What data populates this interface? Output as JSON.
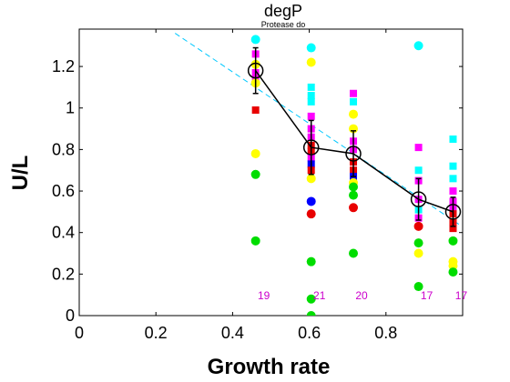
{
  "chart_data": {
    "type": "scatter",
    "title": "degP",
    "subtitle": "Protease do",
    "xlabel": "Growth rate",
    "ylabel": "U/L",
    "xlim": [
      0,
      1.0
    ],
    "ylim": [
      0,
      1.38
    ],
    "x_ticks": [
      "0",
      "0.2",
      "0.4",
      "0.6",
      "0.8"
    ],
    "y_ticks": [
      "0",
      "0.2",
      "0.4",
      "0.6",
      "0.8",
      "1",
      "1.2"
    ],
    "grid": false,
    "colors": {
      "magenta": "#ff00ff",
      "cyan": "#00ffff",
      "red": "#e80000",
      "yellow": "#ffff00",
      "green": "#00dd00",
      "blue": "#0000ff",
      "mean_line": "#000000",
      "fit_line": "#00c8ff",
      "count_text": "#cc00cc"
    },
    "points": [
      {
        "x": 0.46,
        "y": 1.33,
        "shape": "circle",
        "color": "cyan"
      },
      {
        "x": 0.46,
        "y": 1.26,
        "shape": "square",
        "color": "magenta"
      },
      {
        "x": 0.46,
        "y": 1.21,
        "shape": "circle",
        "color": "yellow"
      },
      {
        "x": 0.46,
        "y": 1.17,
        "shape": "square",
        "color": "magenta"
      },
      {
        "x": 0.46,
        "y": 1.14,
        "shape": "square",
        "color": "magenta"
      },
      {
        "x": 0.46,
        "y": 1.12,
        "shape": "circle",
        "color": "yellow"
      },
      {
        "x": 0.46,
        "y": 0.99,
        "shape": "square",
        "color": "red"
      },
      {
        "x": 0.46,
        "y": 0.78,
        "shape": "circle",
        "color": "yellow"
      },
      {
        "x": 0.46,
        "y": 0.68,
        "shape": "circle",
        "color": "green"
      },
      {
        "x": 0.46,
        "y": 0.36,
        "shape": "circle",
        "color": "green"
      },
      {
        "x": 0.605,
        "y": 1.29,
        "shape": "circle",
        "color": "cyan"
      },
      {
        "x": 0.605,
        "y": 1.22,
        "shape": "circle",
        "color": "yellow"
      },
      {
        "x": 0.605,
        "y": 1.1,
        "shape": "square",
        "color": "cyan"
      },
      {
        "x": 0.605,
        "y": 1.06,
        "shape": "square",
        "color": "cyan"
      },
      {
        "x": 0.605,
        "y": 1.03,
        "shape": "square",
        "color": "cyan"
      },
      {
        "x": 0.605,
        "y": 0.96,
        "shape": "square",
        "color": "magenta"
      },
      {
        "x": 0.605,
        "y": 0.9,
        "shape": "square",
        "color": "magenta"
      },
      {
        "x": 0.605,
        "y": 0.86,
        "shape": "square",
        "color": "magenta"
      },
      {
        "x": 0.605,
        "y": 0.82,
        "shape": "square",
        "color": "red"
      },
      {
        "x": 0.605,
        "y": 0.79,
        "shape": "square",
        "color": "red"
      },
      {
        "x": 0.605,
        "y": 0.76,
        "shape": "square",
        "color": "magenta"
      },
      {
        "x": 0.605,
        "y": 0.73,
        "shape": "square",
        "color": "blue"
      },
      {
        "x": 0.605,
        "y": 0.7,
        "shape": "square",
        "color": "red"
      },
      {
        "x": 0.605,
        "y": 0.66,
        "shape": "circle",
        "color": "yellow"
      },
      {
        "x": 0.605,
        "y": 0.55,
        "shape": "circle",
        "color": "blue"
      },
      {
        "x": 0.605,
        "y": 0.49,
        "shape": "circle",
        "color": "red"
      },
      {
        "x": 0.605,
        "y": 0.26,
        "shape": "circle",
        "color": "green"
      },
      {
        "x": 0.605,
        "y": 0.08,
        "shape": "circle",
        "color": "green"
      },
      {
        "x": 0.605,
        "y": 0.0,
        "shape": "circle",
        "color": "green"
      },
      {
        "x": 0.715,
        "y": 1.07,
        "shape": "square",
        "color": "magenta"
      },
      {
        "x": 0.715,
        "y": 1.03,
        "shape": "square",
        "color": "cyan"
      },
      {
        "x": 0.715,
        "y": 0.97,
        "shape": "circle",
        "color": "yellow"
      },
      {
        "x": 0.715,
        "y": 0.9,
        "shape": "circle",
        "color": "yellow"
      },
      {
        "x": 0.715,
        "y": 0.84,
        "shape": "square",
        "color": "magenta"
      },
      {
        "x": 0.715,
        "y": 0.8,
        "shape": "square",
        "color": "magenta"
      },
      {
        "x": 0.715,
        "y": 0.74,
        "shape": "square",
        "color": "red"
      },
      {
        "x": 0.715,
        "y": 0.7,
        "shape": "square",
        "color": "red"
      },
      {
        "x": 0.715,
        "y": 0.67,
        "shape": "square",
        "color": "blue"
      },
      {
        "x": 0.715,
        "y": 0.64,
        "shape": "circle",
        "color": "yellow"
      },
      {
        "x": 0.715,
        "y": 0.62,
        "shape": "circle",
        "color": "green"
      },
      {
        "x": 0.715,
        "y": 0.58,
        "shape": "circle",
        "color": "green"
      },
      {
        "x": 0.715,
        "y": 0.52,
        "shape": "circle",
        "color": "red"
      },
      {
        "x": 0.715,
        "y": 0.3,
        "shape": "circle",
        "color": "green"
      },
      {
        "x": 0.885,
        "y": 1.3,
        "shape": "circle",
        "color": "cyan"
      },
      {
        "x": 0.885,
        "y": 0.81,
        "shape": "square",
        "color": "magenta"
      },
      {
        "x": 0.885,
        "y": 0.7,
        "shape": "square",
        "color": "cyan"
      },
      {
        "x": 0.885,
        "y": 0.65,
        "shape": "square",
        "color": "magenta"
      },
      {
        "x": 0.885,
        "y": 0.56,
        "shape": "square",
        "color": "magenta"
      },
      {
        "x": 0.885,
        "y": 0.51,
        "shape": "square",
        "color": "cyan"
      },
      {
        "x": 0.885,
        "y": 0.47,
        "shape": "square",
        "color": "magenta"
      },
      {
        "x": 0.885,
        "y": 0.43,
        "shape": "circle",
        "color": "red"
      },
      {
        "x": 0.885,
        "y": 0.35,
        "shape": "circle",
        "color": "green"
      },
      {
        "x": 0.885,
        "y": 0.3,
        "shape": "circle",
        "color": "yellow"
      },
      {
        "x": 0.885,
        "y": 0.14,
        "shape": "circle",
        "color": "green"
      },
      {
        "x": 0.975,
        "y": 0.85,
        "shape": "square",
        "color": "cyan"
      },
      {
        "x": 0.975,
        "y": 0.72,
        "shape": "square",
        "color": "cyan"
      },
      {
        "x": 0.975,
        "y": 0.66,
        "shape": "square",
        "color": "cyan"
      },
      {
        "x": 0.975,
        "y": 0.6,
        "shape": "square",
        "color": "magenta"
      },
      {
        "x": 0.975,
        "y": 0.55,
        "shape": "square",
        "color": "magenta"
      },
      {
        "x": 0.975,
        "y": 0.52,
        "shape": "square",
        "color": "magenta"
      },
      {
        "x": 0.975,
        "y": 0.49,
        "shape": "square",
        "color": "red"
      },
      {
        "x": 0.975,
        "y": 0.45,
        "shape": "square",
        "color": "red"
      },
      {
        "x": 0.975,
        "y": 0.42,
        "shape": "square",
        "color": "red"
      },
      {
        "x": 0.975,
        "y": 0.36,
        "shape": "circle",
        "color": "green"
      },
      {
        "x": 0.975,
        "y": 0.26,
        "shape": "circle",
        "color": "yellow"
      },
      {
        "x": 0.975,
        "y": 0.24,
        "shape": "circle",
        "color": "yellow"
      },
      {
        "x": 0.975,
        "y": 0.21,
        "shape": "circle",
        "color": "green"
      }
    ],
    "mean": {
      "x": [
        0.46,
        0.605,
        0.715,
        0.885,
        0.975
      ],
      "y": [
        1.18,
        0.81,
        0.78,
        0.56,
        0.5
      ],
      "err": [
        0.11,
        0.13,
        0.11,
        0.1,
        0.07
      ]
    },
    "fit_line": {
      "x": [
        0.25,
        0.99
      ],
      "y": [
        1.36,
        0.44
      ]
    },
    "counts": [
      {
        "x": 0.46,
        "label": "19"
      },
      {
        "x": 0.605,
        "label": "21"
      },
      {
        "x": 0.715,
        "label": "20"
      },
      {
        "x": 0.885,
        "label": "17"
      },
      {
        "x": 0.975,
        "label": "17"
      }
    ],
    "counts_y": 0.1
  }
}
